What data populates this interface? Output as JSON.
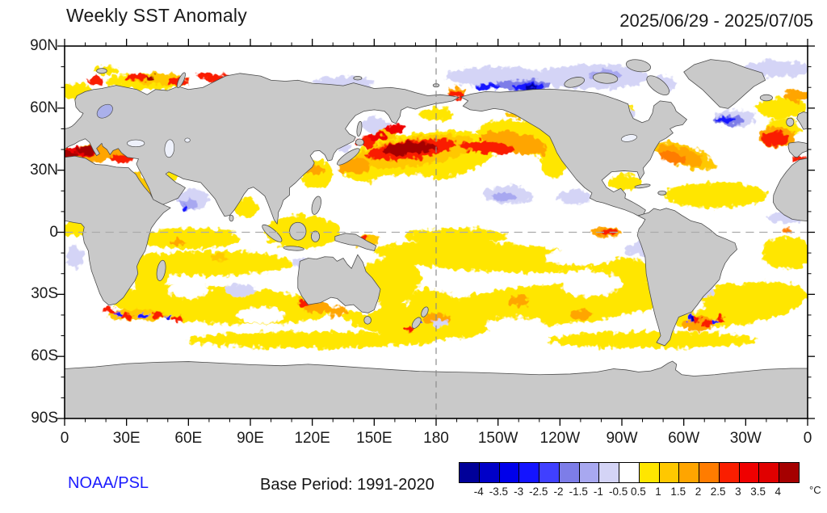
{
  "header": {
    "title": "Weekly SST Anomaly",
    "date_range": "2025/06/29 - 2025/07/05"
  },
  "footer": {
    "credit": "NOAA/PSL",
    "base_period": "Base Period: 1991-2020"
  },
  "colorbar": {
    "units": "°C"
  },
  "palette": {
    "land": "#c9c9c9",
    "coast": "#4a4a4a",
    "lake": "#eef1fb",
    "baltic": "#aab0ea",
    "frame": "#000000",
    "grid_equator": "#aaaaaa",
    "grid_dateline": "#888888",
    "ocean": "#ffffff",
    "credit_blue": "#1c1cff"
  },
  "chart_data": {
    "type": "heatmap",
    "title": "Weekly SST Anomaly",
    "period": "2025/06/29 - 2025/07/05",
    "base_period": "1991-2020",
    "units": "°C",
    "projection": "equirectangular, Pacific-centered",
    "lon_range": [
      0,
      360
    ],
    "lat_range": [
      -90,
      90
    ],
    "grid": {
      "equator_dashed": true,
      "dateline_dashed": true
    },
    "axes": {
      "minor_step": 10,
      "major_step": 30,
      "x_ticks": [
        {
          "v": 0,
          "label": "0"
        },
        {
          "v": 30,
          "label": "30E"
        },
        {
          "v": 60,
          "label": "60E"
        },
        {
          "v": 90,
          "label": "90E"
        },
        {
          "v": 120,
          "label": "120E"
        },
        {
          "v": 150,
          "label": "150E"
        },
        {
          "v": 180,
          "label": "180"
        },
        {
          "v": 210,
          "label": "150W"
        },
        {
          "v": 240,
          "label": "120W"
        },
        {
          "v": 270,
          "label": "90W"
        },
        {
          "v": 300,
          "label": "60W"
        },
        {
          "v": 330,
          "label": "30W"
        },
        {
          "v": 360,
          "label": "0"
        }
      ],
      "y_ticks": [
        {
          "v": 90,
          "label": "90N"
        },
        {
          "v": 60,
          "label": "60N"
        },
        {
          "v": 30,
          "label": "30N"
        },
        {
          "v": 0,
          "label": "0"
        },
        {
          "v": -30,
          "label": "30S"
        },
        {
          "v": -60,
          "label": "60S"
        },
        {
          "v": -90,
          "label": "90S"
        }
      ]
    },
    "colorbar_levels": [
      -4,
      -3.5,
      -3,
      -2.5,
      -2,
      -1.5,
      -1,
      -0.5,
      0.5,
      1,
      1.5,
      2,
      2.5,
      3,
      3.5,
      4
    ],
    "colorbar_colors": [
      "#000099",
      "#0000c8",
      "#0000ea",
      "#1414ff",
      "#4040ff",
      "#7d7de8",
      "#a8a8f0",
      "#d4d4f6",
      "#ffffff",
      "#ffe600",
      "#ffc800",
      "#ffa500",
      "#ff7c00",
      "#fa1e00",
      "#ef0000",
      "#e00000",
      "#a50000"
    ],
    "anomaly_regions_format": "[lon_east_deg, lat_deg, rx_deg, ry_deg, rotation_deg, anomaly_degC]",
    "anomaly_regions": [
      [
        172,
        36,
        38,
        12,
        -8,
        0.8
      ],
      [
        225,
        45,
        25,
        8,
        10,
        0.8
      ],
      [
        237,
        33,
        6,
        7,
        0,
        0.8
      ],
      [
        205,
        -12,
        55,
        7,
        3,
        0.8
      ],
      [
        235,
        -35,
        60,
        10,
        -5,
        0.8
      ],
      [
        170,
        -43,
        35,
        8,
        5,
        0.8
      ],
      [
        155,
        -25,
        18,
        12,
        -20,
        0.8
      ],
      [
        75,
        -35,
        55,
        9,
        3,
        0.8
      ],
      [
        70,
        -15,
        40,
        6,
        0,
        0.8
      ],
      [
        42,
        -22,
        8,
        12,
        0,
        0.8
      ],
      [
        325,
        -35,
        35,
        10,
        -8,
        0.8
      ],
      [
        350,
        -10,
        12,
        8,
        0,
        0.8
      ],
      [
        5,
        2,
        7,
        4,
        0,
        0.8
      ],
      [
        60,
        -3,
        25,
        5,
        0,
        0.8
      ],
      [
        51,
        27,
        4,
        2,
        0,
        0.8
      ],
      [
        88,
        12,
        6,
        5,
        0,
        0.8
      ],
      [
        115,
        0,
        18,
        8,
        0,
        0.8
      ],
      [
        122,
        28,
        8,
        7,
        0,
        0.8
      ],
      [
        272,
        24,
        8,
        4,
        0,
        0.8
      ],
      [
        315,
        18,
        25,
        6,
        0,
        0.8
      ],
      [
        40,
        73,
        20,
        4,
        0,
        0.8
      ],
      [
        5,
        68,
        8,
        4,
        0,
        0.8
      ],
      [
        347,
        60,
        12,
        5,
        0,
        0.8
      ],
      [
        268,
        58,
        8,
        4,
        0,
        0.8
      ],
      [
        178,
        -35,
        12,
        8,
        0,
        0.8
      ],
      [
        120,
        -52,
        60,
        4,
        0,
        0.8
      ],
      [
        285,
        -52,
        50,
        4,
        0,
        0.8
      ],
      [
        190,
        -2,
        25,
        4,
        0,
        0.8
      ],
      [
        270,
        -20,
        15,
        8,
        0,
        0.8
      ],
      [
        348,
        50,
        8,
        5,
        0,
        0.8
      ],
      [
        180,
        57,
        8,
        3,
        0,
        0.8
      ],
      [
        20,
        78,
        6,
        2,
        0,
        0.8
      ],
      [
        190,
        -25,
        12,
        5,
        0,
        0.2
      ],
      [
        255,
        -25,
        15,
        6,
        0,
        0.2
      ],
      [
        300,
        -35,
        10,
        4,
        0,
        0.2
      ],
      [
        95,
        -40,
        12,
        4,
        0,
        0.2
      ],
      [
        145,
        -35,
        8,
        4,
        0,
        0.2
      ],
      [
        218,
        -45,
        14,
        4,
        0,
        0.2
      ],
      [
        320,
        -20,
        10,
        5,
        0,
        0.2
      ],
      [
        60,
        -28,
        10,
        4,
        0,
        0.2
      ],
      [
        20,
        -30,
        8,
        5,
        0,
        0.2
      ],
      [
        250,
        -12,
        18,
        4,
        0,
        0.2
      ],
      [
        165,
        22,
        18,
        6,
        0,
        0.2
      ],
      [
        170,
        39,
        30,
        7,
        -8,
        1.2
      ],
      [
        300,
        37,
        16,
        5,
        18,
        1.2
      ],
      [
        45,
        74,
        12,
        3,
        0,
        1.2
      ],
      [
        146,
        -4,
        6,
        3,
        0,
        1.2
      ],
      [
        75,
        -12,
        4,
        2,
        0,
        1.2
      ],
      [
        35,
        -40,
        14,
        3,
        0,
        1.2
      ],
      [
        220,
        57,
        6,
        2,
        0,
        1.2
      ],
      [
        155,
        47,
        6,
        3,
        0,
        1.2
      ],
      [
        38,
        20,
        4,
        10,
        -25,
        1.2
      ],
      [
        218,
        43,
        16,
        5,
        12,
        1.8
      ],
      [
        140,
        32,
        8,
        4,
        0,
        1.8
      ],
      [
        298,
        37,
        12,
        4,
        18,
        1.8
      ],
      [
        345,
        46,
        9,
        5,
        0,
        1.8
      ],
      [
        15,
        38,
        17,
        4,
        0,
        1.8
      ],
      [
        41,
        15,
        2.5,
        4,
        0,
        1.8
      ],
      [
        122,
        -36,
        6,
        3,
        0,
        1.8
      ],
      [
        132,
        -38,
        5,
        2.5,
        0,
        1.8
      ],
      [
        307,
        -44,
        8,
        4,
        0,
        1.8
      ],
      [
        262,
        0,
        7,
        2.5,
        0,
        1.8
      ],
      [
        180,
        -42,
        6,
        3,
        0,
        1.8
      ],
      [
        220,
        -33,
        5,
        2.5,
        0,
        1.8
      ],
      [
        250,
        -40,
        5,
        2.5,
        0,
        1.8
      ],
      [
        355,
        66,
        6,
        3,
        0,
        1.8
      ],
      [
        190,
        68,
        4,
        2,
        0,
        1.8
      ],
      [
        122,
        30,
        4,
        2,
        0,
        1.8
      ],
      [
        55,
        -5,
        3,
        1.5,
        0,
        1.8
      ],
      [
        350,
        1,
        2,
        1,
        0,
        2.2
      ],
      [
        295,
        36,
        7,
        2.5,
        15,
        2.2
      ],
      [
        168,
        40,
        22,
        4.5,
        -7,
        2.8
      ],
      [
        205,
        41,
        14,
        3,
        5,
        2.8
      ],
      [
        147,
        44,
        5,
        3,
        0,
        2.8
      ],
      [
        344,
        45,
        6.5,
        3.5,
        0,
        2.8
      ],
      [
        356,
        35.5,
        4,
        1.2,
        0,
        2.8
      ],
      [
        8,
        39,
        8,
        2.5,
        0,
        3.2
      ],
      [
        28,
        35.5,
        6,
        2,
        0,
        2.8
      ],
      [
        35,
        75,
        5,
        2,
        0,
        2.8
      ],
      [
        55,
        73,
        5,
        2,
        0,
        2.8
      ],
      [
        15,
        73,
        4,
        2,
        0,
        2.8
      ],
      [
        68,
        76,
        4,
        1.5,
        0,
        2.8
      ],
      [
        75,
        74,
        6,
        2.5,
        0,
        2.8
      ],
      [
        190,
        66.5,
        3.5,
        2,
        0,
        2.8
      ],
      [
        22,
        -38,
        3,
        1.5,
        0,
        2.8
      ],
      [
        30,
        -41,
        3,
        1.5,
        0,
        2.8
      ],
      [
        45,
        -40,
        3,
        1.5,
        0,
        2.8
      ],
      [
        55,
        -42,
        2.5,
        1.3,
        0,
        2.8
      ],
      [
        116,
        -34,
        3.5,
        2,
        0,
        2.8
      ],
      [
        305,
        -42,
        3,
        2,
        0,
        2.8
      ],
      [
        312,
        -44,
        2.5,
        1.5,
        0,
        2.8
      ],
      [
        318,
        -42,
        2,
        1.5,
        0,
        2.8
      ],
      [
        144,
        -3,
        2.5,
        1.5,
        0,
        2.8
      ],
      [
        263,
        0,
        4,
        1.5,
        0,
        2.8
      ],
      [
        264,
        60,
        4,
        1.5,
        0,
        2.8
      ],
      [
        167,
        -47,
        2.5,
        1.5,
        0,
        2.8
      ],
      [
        228,
        58.5,
        4,
        1.5,
        0,
        2.8
      ],
      [
        160,
        50,
        5,
        2.5,
        0,
        3.2
      ],
      [
        152,
        46,
        4,
        2,
        0,
        3.2
      ],
      [
        166,
        40.5,
        12,
        3,
        -5,
        4.5
      ],
      [
        176,
        41,
        4,
        2,
        0,
        4.5
      ],
      [
        10,
        39.5,
        5,
        1.8,
        0,
        4.5
      ],
      [
        2,
        37,
        4,
        2.5,
        0,
        4.5
      ],
      [
        42,
        74.5,
        2.5,
        1.2,
        0,
        4.5
      ],
      [
        255,
        75,
        28,
        6,
        0,
        -0.8
      ],
      [
        210,
        75,
        25,
        5,
        0,
        -0.8
      ],
      [
        345,
        79,
        15,
        4,
        0,
        -0.8
      ],
      [
        290,
        72,
        6,
        4,
        0,
        -0.8
      ],
      [
        215,
        18,
        12,
        4.5,
        0,
        -0.8
      ],
      [
        247,
        17,
        8,
        3.5,
        0,
        -0.8
      ],
      [
        62,
        16,
        8,
        5,
        0,
        -0.8
      ],
      [
        135,
        72,
        15,
        3.5,
        0,
        -0.8
      ],
      [
        350,
        7,
        10,
        2.5,
        0,
        -0.8
      ],
      [
        278,
        -8,
        6,
        3,
        0,
        -0.8
      ],
      [
        310,
        -28,
        6,
        3,
        0,
        -0.8
      ],
      [
        150,
        52,
        6,
        4,
        0,
        -0.8
      ],
      [
        325,
        55,
        10,
        4,
        0,
        -0.8
      ],
      [
        85,
        -28,
        8,
        3,
        0,
        -0.8
      ],
      [
        182,
        -44,
        4,
        2,
        0,
        -0.8
      ],
      [
        272,
        57,
        4,
        2.5,
        0,
        -0.8
      ],
      [
        136,
        41,
        3,
        2.5,
        0,
        -0.8
      ],
      [
        115,
        -15,
        5,
        2.5,
        0,
        -0.8
      ],
      [
        5,
        -12,
        4,
        6,
        0,
        -0.8
      ],
      [
        222,
        71,
        14,
        2.5,
        0,
        -1.8
      ],
      [
        322,
        54,
        7,
        2.5,
        0,
        -1.8
      ],
      [
        60,
        13,
        4,
        2.5,
        0,
        -1.2
      ],
      [
        262,
        76,
        8,
        2.5,
        0,
        -1.2
      ],
      [
        213,
        17,
        6,
        2,
        0,
        -1.2
      ],
      [
        225,
        70.5,
        8,
        1.5,
        0,
        -2.8
      ],
      [
        320,
        54.5,
        4,
        1.5,
        0,
        -2.8
      ],
      [
        26,
        -39.5,
        2,
        1.2,
        0,
        -2.8
      ],
      [
        38,
        -40.5,
        2.5,
        1.2,
        0,
        -2.8
      ],
      [
        50,
        -41,
        1.8,
        1,
        0,
        -2.8
      ],
      [
        303,
        -41.5,
        1.5,
        2,
        0,
        -2.8
      ],
      [
        315,
        -43,
        1.8,
        1.2,
        0,
        -2.8
      ],
      [
        270,
        59,
        1.8,
        1.2,
        0,
        -2.8
      ],
      [
        58,
        12,
        1.5,
        1,
        0,
        -2.8
      ],
      [
        172,
        -44,
        1.2,
        0.8,
        0,
        -2.8
      ],
      [
        205,
        70.5,
        6,
        1.2,
        0,
        -2.8
      ],
      [
        304,
        -42.5,
        1.2,
        1.5,
        0,
        -4.2
      ],
      [
        226,
        70.3,
        3,
        0.8,
        0,
        -4.2
      ]
    ]
  }
}
